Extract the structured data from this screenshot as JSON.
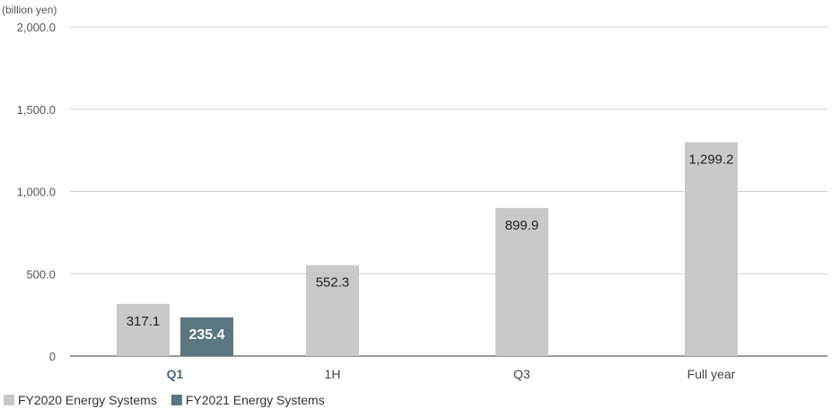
{
  "chart_data": {
    "type": "bar",
    "unit_label": "(billion yen)",
    "categories": [
      "Q1",
      "1H",
      "Q3",
      "Full year"
    ],
    "highlight_category": "Q1",
    "yticks": [
      "2,000.0",
      "1,500.0",
      "1,000.0",
      "500.0",
      "0"
    ],
    "ylim": [
      0,
      2000
    ],
    "grid": true,
    "legend_position": "bottom-left",
    "series": [
      {
        "name": "FY2020 Energy Systems",
        "color": "#c9c9c9",
        "values": [
          317.1,
          552.3,
          899.9,
          1299.2
        ],
        "labels": [
          "317.1",
          "552.3",
          "899.9",
          "1,299.2"
        ]
      },
      {
        "name": "FY2021 Energy Systems",
        "color": "#5a7680",
        "values": [
          235.4,
          null,
          null,
          null
        ],
        "labels": [
          "235.4",
          null,
          null,
          null
        ]
      }
    ]
  }
}
